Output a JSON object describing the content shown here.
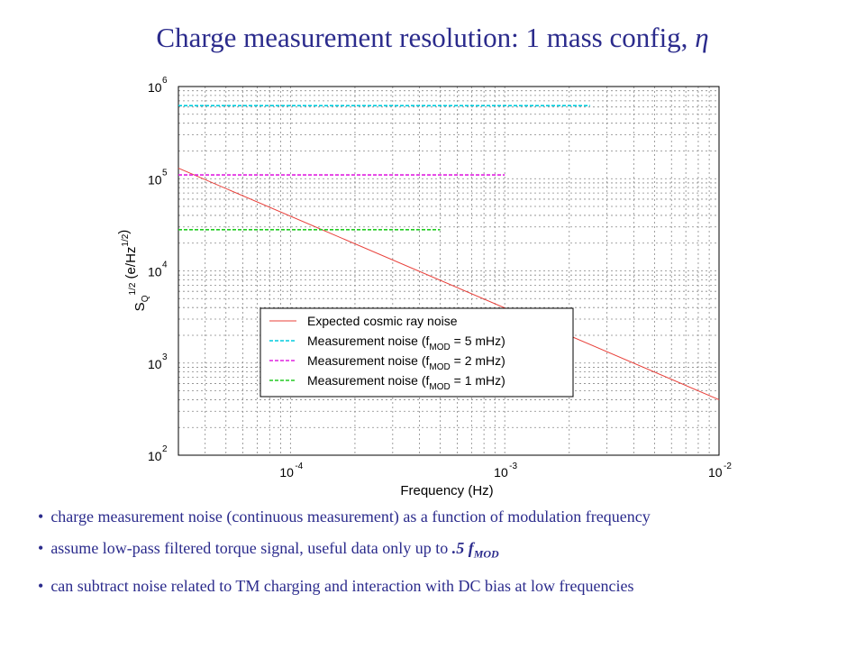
{
  "slide": {
    "title_main": "Charge measurement resolution: 1 mass config, ",
    "title_symbol": "η"
  },
  "chart_data": {
    "type": "line",
    "xlabel": "Frequency (Hz)",
    "ylabel": "S_Q^{1/2} (e/Hz^{1/2})",
    "xscale": "log",
    "yscale": "log",
    "xlim": [
      3e-05,
      0.01
    ],
    "ylim": [
      100,
      1000000
    ],
    "grid": true,
    "legend_position": "bottom-right",
    "x_ticks": [
      "10^-4",
      "10^-3",
      "10^-2"
    ],
    "y_ticks": [
      "10^2",
      "10^3",
      "10^4",
      "10^5",
      "10^6"
    ],
    "series": [
      {
        "name": "Expected cosmic ray noise",
        "color": "#e8403a",
        "dash": "solid",
        "x": [
          3e-05,
          0.01
        ],
        "y": [
          130000,
          400
        ]
      },
      {
        "name": "Measurement noise (f_MOD = 5 mHz)",
        "color": "#00ccdd",
        "dash": "dashed",
        "x": [
          3e-05,
          0.0025
        ],
        "y": [
          620000,
          620000
        ]
      },
      {
        "name": "Measurement noise (f_MOD = 2 mHz)",
        "color": "#e020e0",
        "dash": "dashed",
        "x": [
          3e-05,
          0.001
        ],
        "y": [
          110000,
          110000
        ]
      },
      {
        "name": "Measurement noise (f_MOD = 1 mHz)",
        "color": "#22cc22",
        "dash": "dashed",
        "x": [
          3e-05,
          0.0005
        ],
        "y": [
          28000,
          28000
        ]
      }
    ],
    "legend": [
      {
        "label": "Expected cosmic ray noise",
        "mod": ""
      },
      {
        "label": "Measurement noise (f",
        "sub": "MOD",
        "rest": " = 5 mHz)"
      },
      {
        "label": "Measurement noise (f",
        "sub": "MOD",
        "rest": " = 2 mHz)"
      },
      {
        "label": "Measurement noise (f",
        "sub": "MOD",
        "rest": " = 1 mHz)"
      }
    ]
  },
  "bullets": {
    "b1": "charge measurement noise (continuous measurement) as a function of modulation frequency",
    "b2_text": "assume low-pass filtered torque signal, useful data only up to ",
    "b2_value": ".5 f",
    "b2_sub": "MOD",
    "b3": "can subtract noise related to TM charging and interaction with DC bias at low frequencies"
  }
}
